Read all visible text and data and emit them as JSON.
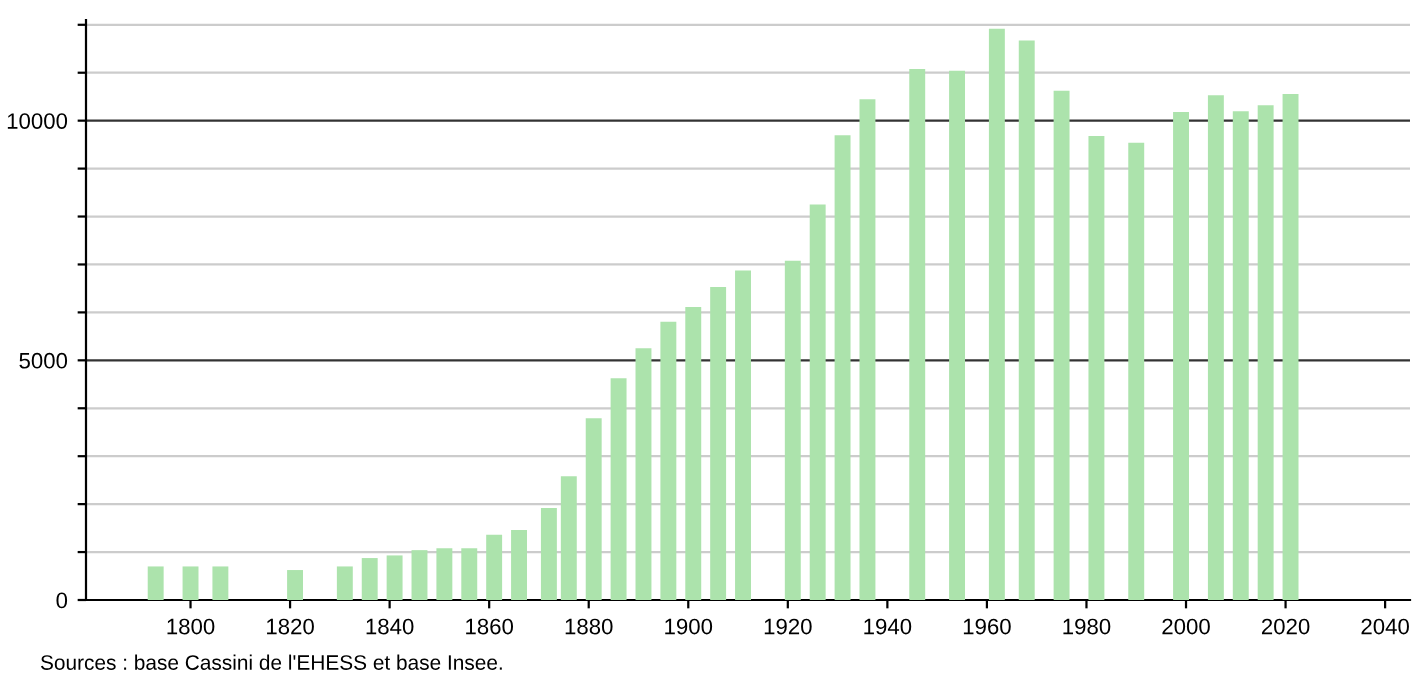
{
  "chart_data": {
    "type": "bar",
    "x": [
      1793,
      1800,
      1806,
      1821,
      1831,
      1836,
      1841,
      1846,
      1851,
      1856,
      1861,
      1866,
      1872,
      1876,
      1881,
      1886,
      1891,
      1896,
      1901,
      1906,
      1911,
      1921,
      1926,
      1931,
      1936,
      1946,
      1954,
      1962,
      1968,
      1975,
      1982,
      1990,
      1999,
      2006,
      2011,
      2016,
      2021
    ],
    "values": [
      700,
      700,
      700,
      625,
      700,
      875,
      930,
      1040,
      1080,
      1080,
      1360,
      1460,
      1920,
      2580,
      3790,
      4625,
      5250,
      5805,
      6110,
      6530,
      6875,
      7080,
      8250,
      9695,
      10445,
      11080,
      11040,
      11915,
      11670,
      10625,
      9680,
      9540,
      10180,
      10530,
      10195,
      10320,
      10555
    ],
    "color": "#ace3ac",
    "xlim": [
      1779,
      2045
    ],
    "xticks": [
      1800,
      1820,
      1840,
      1860,
      1880,
      1900,
      1920,
      1940,
      1960,
      1980,
      2000,
      2020,
      2040
    ],
    "ylim": [
      0,
      12100
    ],
    "yticks": [
      0,
      {
        "value": 1000,
        "label": null
      },
      {
        "value": 2000,
        "label": null
      },
      {
        "value": 3000,
        "label": null
      },
      {
        "value": 4000,
        "label": null
      },
      5000,
      {
        "value": 6000,
        "label": null
      },
      {
        "value": 7000,
        "label": null
      },
      {
        "value": 8000,
        "label": null
      },
      {
        "value": 9000,
        "label": null
      },
      10000,
      {
        "value": 11000,
        "label": null
      },
      {
        "value": 12000,
        "label": null
      }
    ],
    "grid": "y",
    "annotations": [
      "Sources : base Cassini de l'EHESS et base Insee."
    ]
  }
}
